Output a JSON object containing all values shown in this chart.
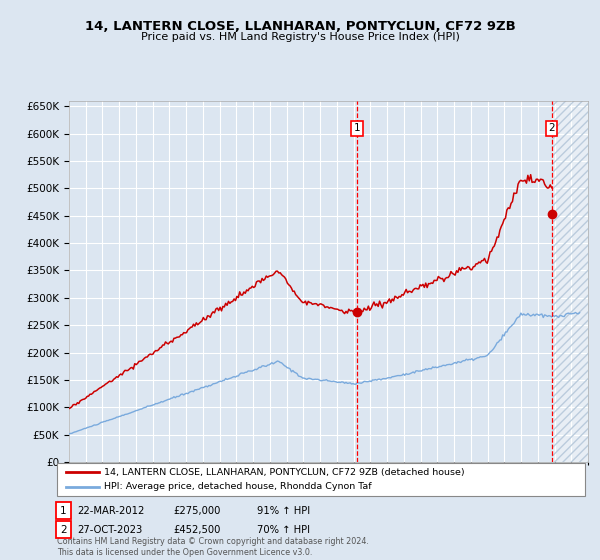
{
  "title": "14, LANTERN CLOSE, LLANHARAN, PONTYCLUN, CF72 9ZB",
  "subtitle": "Price paid vs. HM Land Registry's House Price Index (HPI)",
  "background_color": "#dce6f1",
  "hpi_color": "#7aaadd",
  "price_color": "#cc0000",
  "sale1_date": 2012.22,
  "sale1_price": 275000,
  "sale2_date": 2023.82,
  "sale2_price": 452500,
  "legend_line1": "14, LANTERN CLOSE, LLANHARAN, PONTYCLUN, CF72 9ZB (detached house)",
  "legend_line2": "HPI: Average price, detached house, Rhondda Cynon Taf",
  "footer": "Contains HM Land Registry data © Crown copyright and database right 2024.\nThis data is licensed under the Open Government Licence v3.0.",
  "xlim_start": 1995,
  "xlim_end": 2026,
  "ylim_min": 0,
  "ylim_max": 660000
}
